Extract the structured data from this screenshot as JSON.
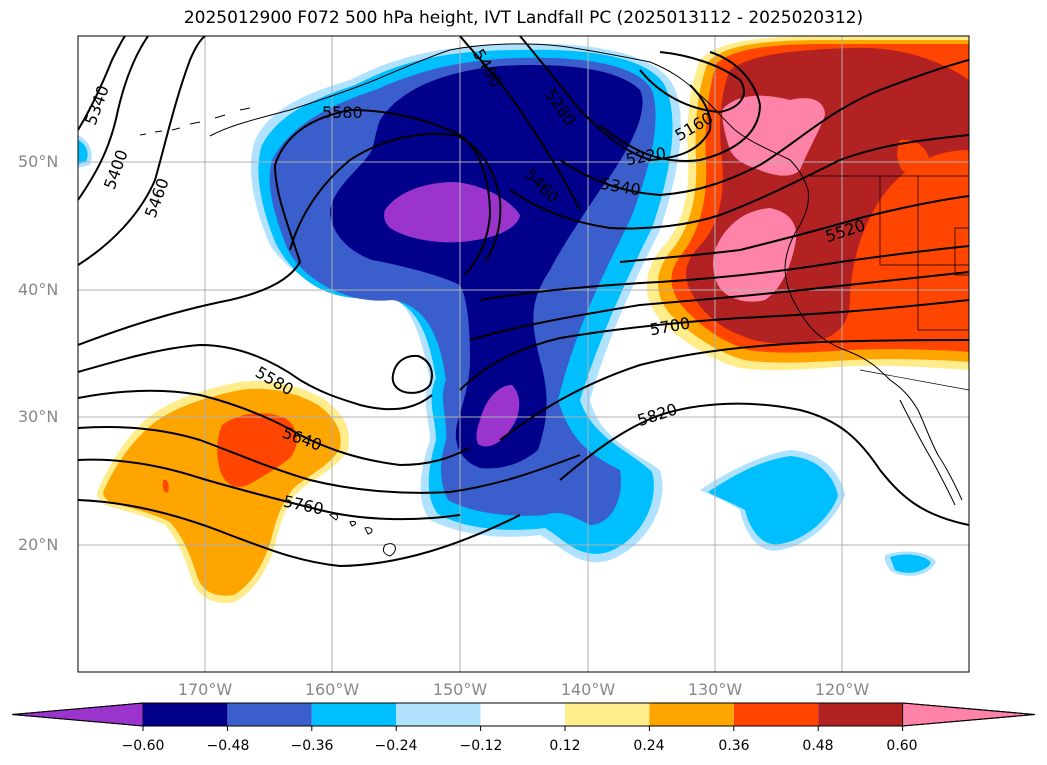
{
  "title": "2025012900 F072 500 hPa height, IVT Landfall PC (2025013112 - 2025020312)",
  "lat_labels": [
    "50°N",
    "40°N",
    "30°N",
    "20°N"
  ],
  "lon_labels": [
    "170°W",
    "160°W",
    "150°W",
    "140°W",
    "130°W",
    "120°W"
  ],
  "colorbar": {
    "tick_labels": [
      "−0.60",
      "−0.48",
      "−0.36",
      "−0.24",
      "−0.12",
      "0.12",
      "0.24",
      "0.36",
      "0.48",
      "0.60"
    ],
    "colors": [
      "#9a34cc",
      "#00008b",
      "#3a5fcd",
      "#00bfff",
      "#b0e2ff",
      "#ffffff",
      "#ffec8b",
      "#ffa500",
      "#ff4500",
      "#b22222",
      "#ff83a8"
    ]
  },
  "contour_labels": [
    "5340",
    "5400",
    "5460",
    "5580",
    "5400",
    "5280",
    "5460",
    "5160",
    "5220",
    "5340",
    "5520",
    "5700",
    "5580",
    "5640",
    "5760",
    "5820"
  ],
  "colors": {
    "grid": "#b0b0b0",
    "coast": "#000000",
    "contour": "#000000"
  }
}
